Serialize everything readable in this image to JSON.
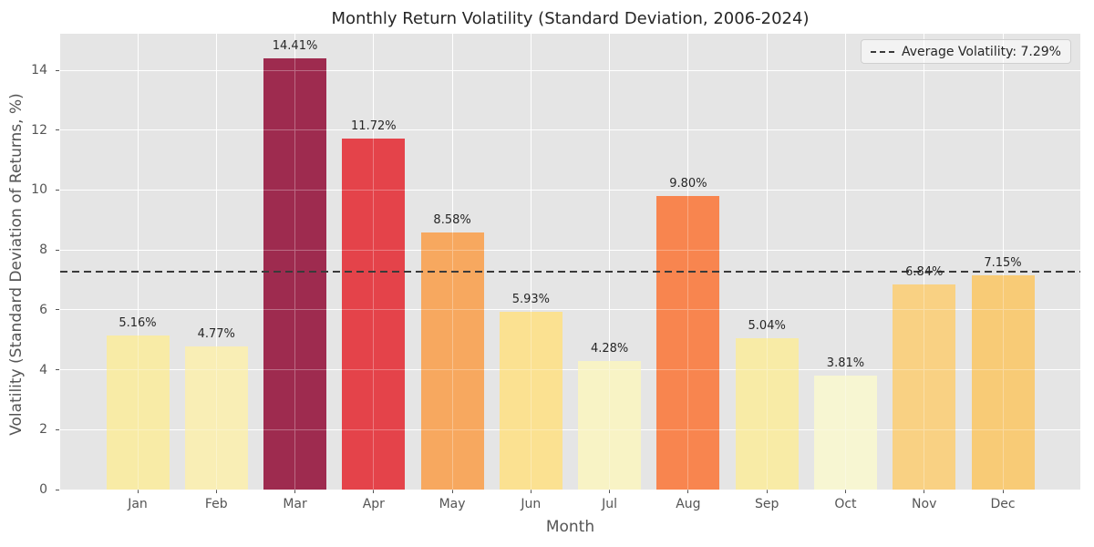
{
  "chart_data": {
    "type": "bar",
    "title": "Monthly Return Volatility (Standard Deviation, 2006-2024)",
    "xlabel": "Month",
    "ylabel": "Volatility (Standard Deviation of Returns, %)",
    "categories": [
      "Jan",
      "Feb",
      "Mar",
      "Apr",
      "May",
      "Jun",
      "Jul",
      "Aug",
      "Sep",
      "Oct",
      "Nov",
      "Dec"
    ],
    "values": [
      5.16,
      4.77,
      14.41,
      11.72,
      8.58,
      5.93,
      4.28,
      9.8,
      5.04,
      3.81,
      6.84,
      7.15
    ],
    "value_labels": [
      "5.16%",
      "4.77%",
      "14.41%",
      "11.72%",
      "8.58%",
      "5.93%",
      "4.28%",
      "9.80%",
      "5.04%",
      "3.81%",
      "6.84%",
      "7.15%"
    ],
    "bar_colors": [
      "#f8eba6",
      "#f9eeb5",
      "#9e2b4f",
      "#e4434a",
      "#f7a85f",
      "#fbe191",
      "#f8f3c5",
      "#f8854f",
      "#f8eba6",
      "#f7f6d2",
      "#f9d183",
      "#f8cb76"
    ],
    "ylim": [
      0,
      15.22
    ],
    "yticks": [
      0,
      2,
      4,
      6,
      8,
      10,
      12,
      14
    ],
    "grid": true,
    "legend": {
      "label": "Average Volatility: 7.29%",
      "line_style": "dashed",
      "line_color": "#3a3a3a",
      "position": "upper right"
    },
    "average_line": {
      "value": 7.29,
      "color": "#3a3a3a",
      "style": "dashed"
    },
    "colors": {
      "figure_background": "#ffffff",
      "plot_background": "#e5e5e5",
      "grid": "#ffffff",
      "tick_label": "#555555",
      "text": "#262626"
    }
  }
}
